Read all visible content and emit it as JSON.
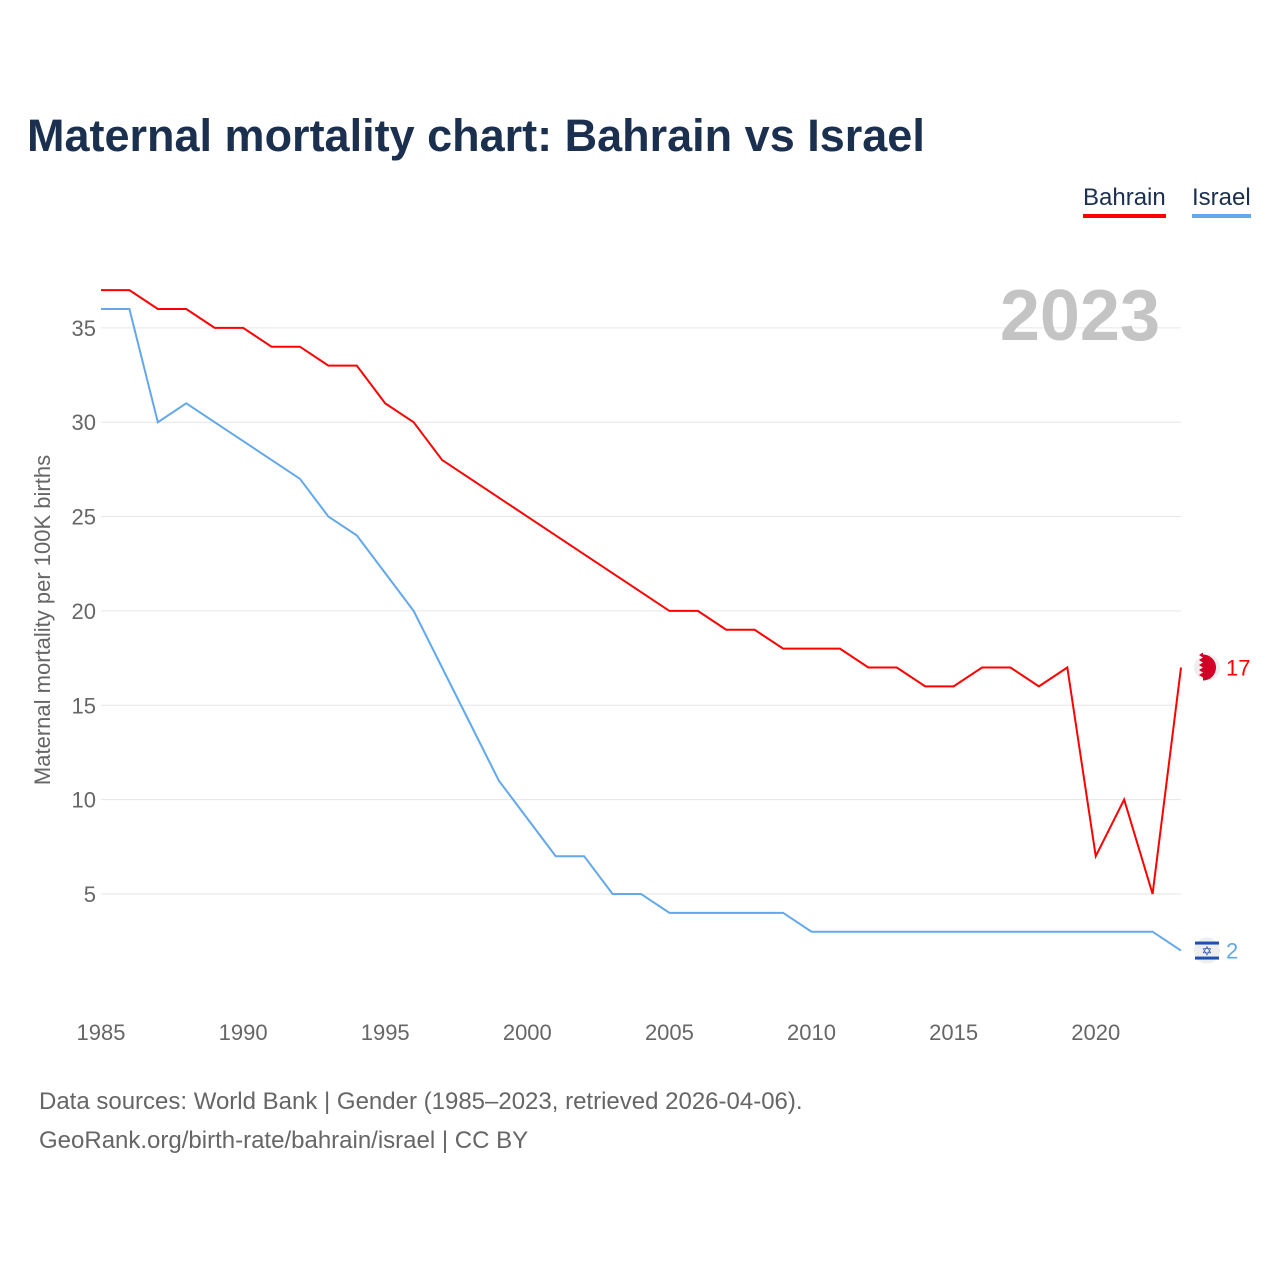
{
  "title": "Maternal mortality chart: Bahrain vs Israel",
  "legend": [
    {
      "name": "Bahrain",
      "color": "#ff0000"
    },
    {
      "name": "Israel",
      "color": "#62a8ea"
    }
  ],
  "year_label": "2023",
  "footer": {
    "line1": "Data sources: World Bank | Gender (1985–2023, retrieved 2026-04-06).",
    "line2": "GeoRank.org/birth-rate/bahrain/israel | CC BY"
  },
  "chart_data": {
    "type": "line",
    "title": "Maternal mortality chart: Bahrain vs Israel",
    "xlabel": "",
    "ylabel": "Maternal mortality per 100K births",
    "xlim": [
      1985,
      2023
    ],
    "ylim": [
      0,
      37
    ],
    "xticks": [
      1985,
      1990,
      1995,
      2000,
      2005,
      2010,
      2015,
      2020
    ],
    "yticks": [
      5,
      10,
      15,
      20,
      25,
      30,
      35
    ],
    "grid": true,
    "legend_position": "top-right",
    "x": [
      1985,
      1986,
      1987,
      1988,
      1989,
      1990,
      1991,
      1992,
      1993,
      1994,
      1995,
      1996,
      1997,
      1998,
      1999,
      2000,
      2001,
      2002,
      2003,
      2004,
      2005,
      2006,
      2007,
      2008,
      2009,
      2010,
      2011,
      2012,
      2013,
      2014,
      2015,
      2016,
      2017,
      2018,
      2019,
      2020,
      2021,
      2022,
      2023
    ],
    "series": [
      {
        "name": "Bahrain",
        "color": "#ff0000",
        "end_label": "17",
        "flag": "bahrain-flag",
        "values": [
          37,
          37,
          36,
          36,
          35,
          35,
          34,
          34,
          33,
          33,
          31,
          30,
          28,
          27,
          26,
          25,
          24,
          23,
          22,
          21,
          20,
          20,
          19,
          19,
          18,
          18,
          18,
          17,
          17,
          16,
          16,
          17,
          17,
          16,
          17,
          7,
          10,
          5,
          17
        ]
      },
      {
        "name": "Israel",
        "color": "#62a8ea",
        "end_label": "2",
        "flag": "israel-flag",
        "values": [
          36,
          36,
          30,
          31,
          30,
          29,
          28,
          27,
          25,
          24,
          22,
          20,
          17,
          14,
          11,
          9,
          7,
          7,
          5,
          5,
          4,
          4,
          4,
          4,
          4,
          3,
          3,
          3,
          3,
          3,
          3,
          3,
          3,
          3,
          3,
          3,
          3,
          3,
          2
        ]
      }
    ]
  }
}
